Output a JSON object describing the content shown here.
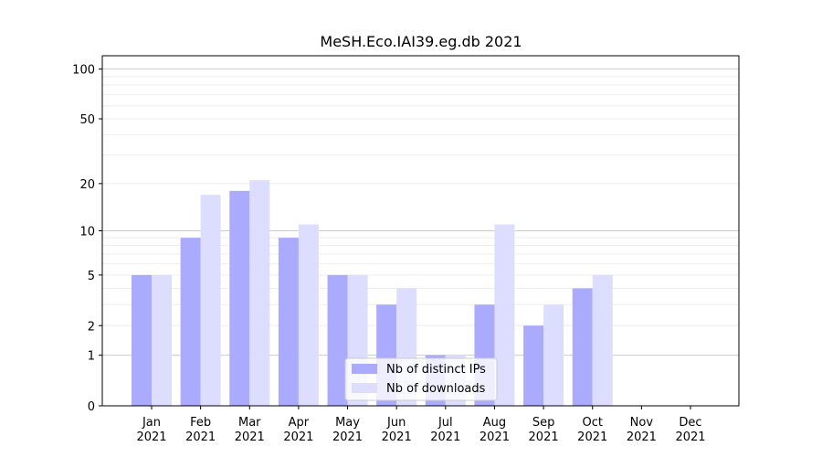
{
  "chart_data": {
    "type": "bar",
    "title": "MeSH.Eco.IAI39.eg.db 2021",
    "xlabel": "",
    "ylabel": "",
    "categories": [
      "Jan",
      "Feb",
      "Mar",
      "Apr",
      "May",
      "Jun",
      "Jul",
      "Aug",
      "Sep",
      "Oct",
      "Nov",
      "Dec"
    ],
    "category_year": "2021",
    "series": [
      {
        "name": "Nb of distinct IPs",
        "color": "#aaaaff",
        "values": [
          5,
          9,
          18,
          9,
          5,
          3,
          1,
          3,
          2,
          4,
          0,
          0
        ]
      },
      {
        "name": "Nb of downloads",
        "color": "#ddddff",
        "values": [
          5,
          17,
          21,
          11,
          5,
          4,
          1,
          11,
          3,
          5,
          0,
          0
        ]
      }
    ],
    "yscale": "log(1+y)",
    "ylim": [
      0,
      120
    ],
    "yticks": [
      0,
      1,
      2,
      5,
      10,
      20,
      50,
      100
    ],
    "grid": true,
    "legend_position": "bottom-center"
  }
}
